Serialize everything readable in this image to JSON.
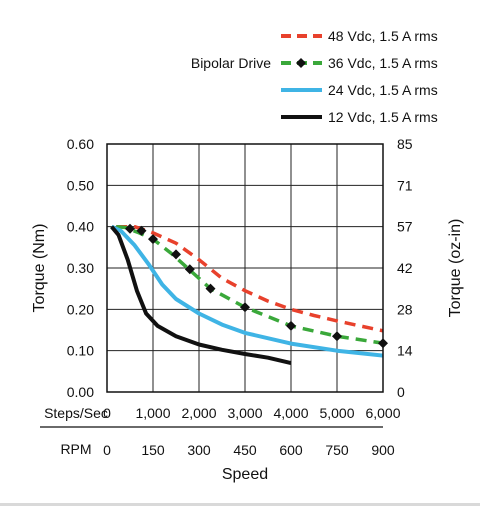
{
  "chart_data": {
    "type": "line",
    "legend_title": "Bipolar Drive",
    "legend_position": "top-right",
    "grid": true,
    "xlabel": "Speed",
    "ylabel": "Torque (Nm)",
    "y2label": "Torque (oz-in)",
    "x_axis_rows": [
      {
        "label": "Steps/Sec",
        "ticks": [
          "0",
          "1,000",
          "2,000",
          "3,000",
          "4,000",
          "5,000",
          "6,000"
        ]
      },
      {
        "label": "RPM",
        "ticks": [
          "0",
          "150",
          "300",
          "450",
          "600",
          "750",
          "900"
        ]
      }
    ],
    "xlim": [
      0,
      6000
    ],
    "ylim": [
      0,
      0.6
    ],
    "y_ticks": [
      "0.00",
      "0.10",
      "0.20",
      "0.30",
      "0.40",
      "0.50",
      "0.60"
    ],
    "y2_ticks": [
      "0",
      "14",
      "28",
      "42",
      "57",
      "71",
      "85"
    ],
    "series": [
      {
        "name": "48 Vdc, 1.5 A rms",
        "color": "#e8412c",
        "style": "dashed",
        "markers": false,
        "x": [
          200,
          600,
          1000,
          1500,
          2000,
          2500,
          3000,
          3500,
          4000,
          4500,
          5000,
          5500,
          6000
        ],
        "y": [
          0.4,
          0.4,
          0.385,
          0.36,
          0.32,
          0.275,
          0.245,
          0.22,
          0.2,
          0.185,
          0.172,
          0.16,
          0.148
        ]
      },
      {
        "name": "36 Vdc, 1.5 A rms",
        "color": "#3aa83a",
        "style": "dashed",
        "markers": true,
        "x": [
          200,
          400,
          700,
          1000,
          1400,
          1800,
          2250,
          3000,
          4000,
          5000,
          6000
        ],
        "y": [
          0.4,
          0.398,
          0.385,
          0.37,
          0.335,
          0.295,
          0.25,
          0.205,
          0.16,
          0.135,
          0.118
        ]
      },
      {
        "name": "24 Vdc, 1.5 A rms",
        "color": "#3fb4e5",
        "style": "solid",
        "markers": false,
        "x": [
          100,
          300,
          600,
          900,
          1200,
          1500,
          2000,
          2500,
          3000,
          4000,
          5000,
          6000
        ],
        "y": [
          0.4,
          0.39,
          0.355,
          0.31,
          0.26,
          0.225,
          0.19,
          0.163,
          0.143,
          0.117,
          0.1,
          0.088
        ]
      },
      {
        "name": "12 Vdc, 1.5 A rms",
        "color": "#111111",
        "style": "solid",
        "markers": false,
        "x": [
          100,
          250,
          450,
          650,
          850,
          1100,
          1500,
          2000,
          2500,
          3000,
          3500,
          4000
        ],
        "y": [
          0.4,
          0.38,
          0.32,
          0.245,
          0.19,
          0.16,
          0.135,
          0.115,
          0.102,
          0.092,
          0.083,
          0.07
        ]
      }
    ],
    "markers_36": {
      "x": [
        500,
        750,
        1000,
        1500,
        1800,
        2250,
        3000,
        4000,
        5000,
        6000
      ],
      "y": [
        0.395,
        0.39,
        0.37,
        0.333,
        0.297,
        0.25,
        0.205,
        0.16,
        0.135,
        0.118
      ]
    }
  }
}
